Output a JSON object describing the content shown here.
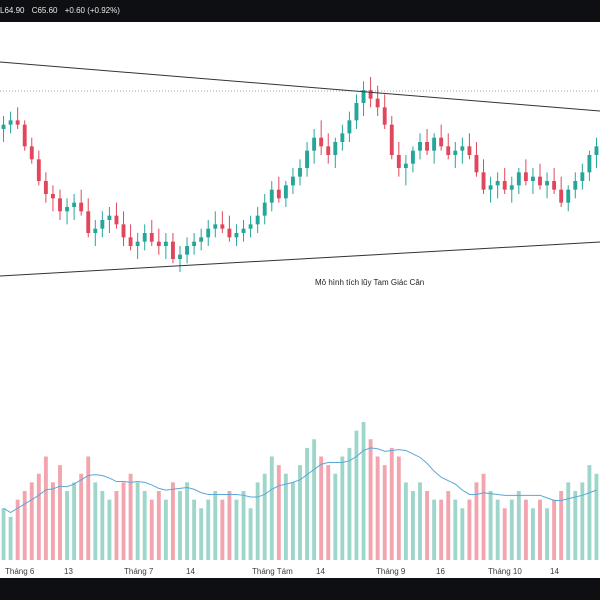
{
  "header": {
    "low": "L64.90",
    "close": "C65.60",
    "change": "+0.60 (+0.92%)"
  },
  "annotation": "Mô hình tích lũy Tam Giác Cân",
  "x_axis_labels": [
    "Tháng 6",
    "13",
    "Tháng 7",
    "14",
    "Tháng Tám",
    "14",
    "Tháng 9",
    "16",
    "Tháng 10",
    "14"
  ],
  "colors": {
    "up": "#26a69a",
    "down": "#e0475c",
    "up_volume": "#9fd6cb",
    "down_volume": "#f2a5ae",
    "ma": "#5aa7d8",
    "trendline": "#333333",
    "dotted": "#9aa3b5"
  },
  "chart_data": {
    "type": "candlestick",
    "series": [
      {
        "name": "",
        "values": []
      }
    ],
    "candles": [
      [
        85,
        88,
        82,
        86,
        6
      ],
      [
        86,
        89,
        84,
        87,
        5
      ],
      [
        87,
        90,
        85,
        86,
        7
      ],
      [
        86,
        87,
        80,
        81,
        8
      ],
      [
        81,
        83,
        77,
        78,
        9
      ],
      [
        78,
        80,
        72,
        73,
        10
      ],
      [
        73,
        75,
        68,
        70,
        12
      ],
      [
        70,
        72,
        66,
        69,
        9
      ],
      [
        69,
        71,
        64,
        66,
        11
      ],
      [
        66,
        69,
        63,
        67,
        8
      ],
      [
        67,
        70,
        64,
        68,
        9
      ],
      [
        68,
        71,
        65,
        66,
        10
      ],
      [
        66,
        69,
        60,
        61,
        12
      ],
      [
        61,
        64,
        58,
        62,
        9
      ],
      [
        62,
        66,
        60,
        64,
        8
      ],
      [
        64,
        67,
        61,
        65,
        7
      ],
      [
        65,
        68,
        62,
        63,
        8
      ],
      [
        63,
        66,
        58,
        60,
        9
      ],
      [
        60,
        63,
        57,
        58,
        10
      ],
      [
        58,
        61,
        55,
        59,
        9
      ],
      [
        59,
        63,
        57,
        61,
        8
      ],
      [
        61,
        64,
        58,
        59,
        7
      ],
      [
        59,
        62,
        56,
        58,
        8
      ],
      [
        58,
        61,
        55,
        59,
        7
      ],
      [
        59,
        61,
        54,
        55,
        9
      ],
      [
        55,
        58,
        52,
        56,
        8
      ],
      [
        56,
        60,
        54,
        58,
        9
      ],
      [
        58,
        61,
        56,
        59,
        7
      ],
      [
        59,
        62,
        57,
        60,
        6
      ],
      [
        60,
        64,
        58,
        62,
        7
      ],
      [
        62,
        66,
        60,
        63,
        8
      ],
      [
        63,
        66,
        61,
        62,
        7
      ],
      [
        62,
        65,
        59,
        60,
        8
      ],
      [
        60,
        63,
        58,
        61,
        7
      ],
      [
        61,
        64,
        59,
        62,
        8
      ],
      [
        62,
        65,
        60,
        63,
        6
      ],
      [
        63,
        67,
        61,
        65,
        9
      ],
      [
        65,
        70,
        63,
        68,
        10
      ],
      [
        68,
        73,
        66,
        71,
        12
      ],
      [
        71,
        74,
        68,
        69,
        11
      ],
      [
        69,
        73,
        67,
        72,
        10
      ],
      [
        72,
        76,
        70,
        74,
        9
      ],
      [
        74,
        78,
        72,
        76,
        11
      ],
      [
        76,
        82,
        74,
        80,
        13
      ],
      [
        80,
        85,
        77,
        83,
        14
      ],
      [
        83,
        87,
        79,
        81,
        12
      ],
      [
        81,
        84,
        77,
        79,
        11
      ],
      [
        79,
        83,
        76,
        82,
        10
      ],
      [
        82,
        86,
        80,
        84,
        12
      ],
      [
        84,
        89,
        82,
        87,
        13
      ],
      [
        87,
        93,
        85,
        91,
        15
      ],
      [
        91,
        96,
        88,
        94,
        16
      ],
      [
        94,
        97,
        90,
        92,
        14
      ],
      [
        92,
        95,
        88,
        90,
        12
      ],
      [
        90,
        93,
        85,
        86,
        11
      ],
      [
        86,
        88,
        78,
        79,
        13
      ],
      [
        79,
        82,
        74,
        76,
        12
      ],
      [
        76,
        79,
        72,
        77,
        9
      ],
      [
        77,
        81,
        75,
        80,
        8
      ],
      [
        80,
        84,
        78,
        82,
        9
      ],
      [
        82,
        85,
        79,
        80,
        8
      ],
      [
        80,
        84,
        77,
        83,
        7
      ],
      [
        83,
        86,
        80,
        81,
        7
      ],
      [
        81,
        84,
        78,
        79,
        8
      ],
      [
        79,
        82,
        76,
        80,
        7
      ],
      [
        80,
        83,
        77,
        81,
        6
      ],
      [
        81,
        84,
        78,
        79,
        7
      ],
      [
        79,
        82,
        74,
        75,
        9
      ],
      [
        75,
        78,
        70,
        71,
        10
      ],
      [
        71,
        74,
        68,
        72,
        8
      ],
      [
        72,
        75,
        69,
        73,
        7
      ],
      [
        73,
        76,
        70,
        71,
        6
      ],
      [
        71,
        74,
        68,
        72,
        7
      ],
      [
        72,
        76,
        70,
        75,
        8
      ],
      [
        75,
        78,
        72,
        73,
        7
      ],
      [
        73,
        76,
        70,
        74,
        6
      ],
      [
        74,
        77,
        71,
        72,
        7
      ],
      [
        72,
        75,
        69,
        73,
        6
      ],
      [
        73,
        76,
        70,
        71,
        7
      ],
      [
        71,
        74,
        67,
        68,
        8
      ],
      [
        68,
        72,
        66,
        71,
        9
      ],
      [
        71,
        75,
        69,
        73,
        8
      ],
      [
        73,
        77,
        71,
        75,
        9
      ],
      [
        75,
        80,
        73,
        79,
        11
      ],
      [
        79,
        83,
        76,
        81,
        10
      ]
    ],
    "x_labels": [
      "Tháng 6",
      "13",
      "Tháng 7",
      "14",
      "Tháng Tám",
      "14",
      "Tháng 9",
      "16",
      "Tháng 10",
      "14"
    ],
    "xlabel": "",
    "ylabel": ""
  }
}
